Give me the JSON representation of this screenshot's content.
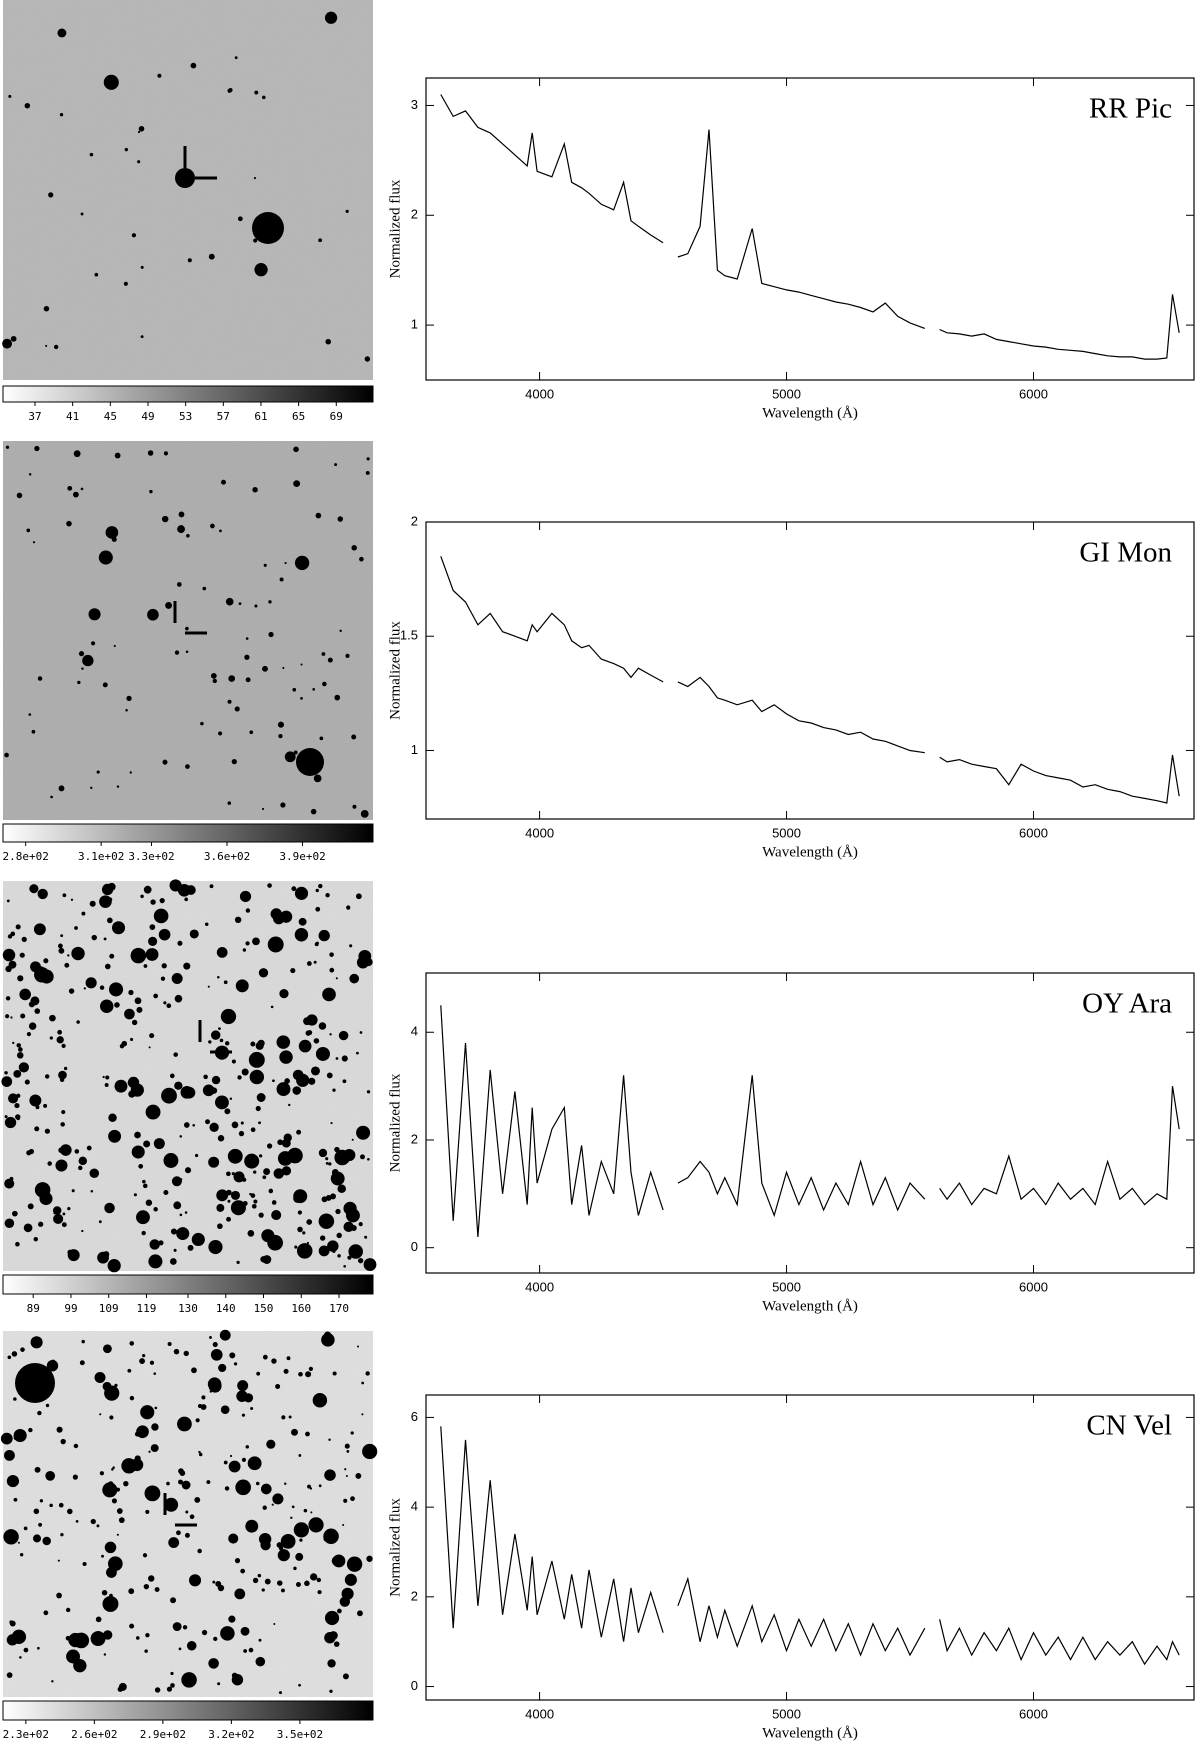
{
  "chart_data": [
    {
      "type": "colorbar",
      "xlim": [
        33.6,
        72.9
      ],
      "xticks": [
        37,
        41,
        45,
        49,
        53,
        57,
        61,
        65,
        69
      ]
    },
    {
      "type": "line",
      "title": "RR Pic",
      "x_label": "Wavelength (Å)",
      "y_label": "Normalized flux",
      "color": "#000000",
      "x": [
        3600,
        3650,
        3700,
        3750,
        3800,
        3850,
        3900,
        3950,
        3970,
        3990,
        4050,
        4100,
        4130,
        4170,
        4200,
        4250,
        4300,
        4340,
        4370,
        4400,
        4450,
        4500,
        4530,
        4560,
        4600,
        4650,
        4686,
        4720,
        4750,
        4800,
        4861,
        4900,
        4950,
        5000,
        5050,
        5100,
        5150,
        5200,
        5250,
        5300,
        5350,
        5400,
        5450,
        5500,
        5560,
        5590,
        5620,
        5650,
        5700,
        5750,
        5800,
        5850,
        5900,
        5950,
        6000,
        6050,
        6100,
        6150,
        6200,
        6250,
        6300,
        6350,
        6400,
        6450,
        6500,
        6540,
        6563,
        6590
      ],
      "values": [
        3.1,
        2.9,
        2.95,
        2.8,
        2.75,
        2.65,
        2.55,
        2.45,
        2.75,
        2.4,
        2.35,
        2.65,
        2.3,
        2.25,
        2.2,
        2.1,
        2.05,
        2.3,
        1.95,
        1.9,
        1.82,
        1.75,
        null,
        1.62,
        1.65,
        1.9,
        2.78,
        1.5,
        1.45,
        1.42,
        1.88,
        1.38,
        1.35,
        1.32,
        1.3,
        1.27,
        1.24,
        1.21,
        1.19,
        1.16,
        1.12,
        1.2,
        1.08,
        1.02,
        0.97,
        null,
        0.96,
        0.93,
        0.92,
        0.9,
        0.92,
        0.87,
        0.85,
        0.83,
        0.81,
        0.8,
        0.78,
        0.77,
        0.76,
        0.74,
        0.72,
        0.71,
        0.71,
        0.69,
        0.69,
        0.7,
        1.28,
        0.93
      ],
      "xlim": [
        3540,
        6650
      ],
      "xticks": [
        4000,
        5000,
        6000
      ],
      "ylim": [
        0.5,
        3.25
      ],
      "yticks": [
        1,
        2,
        3
      ]
    },
    {
      "type": "colorbar",
      "xlim": [
        271,
        418
      ],
      "xticks": [
        {
          "value": 280,
          "label": "2.8e+02"
        },
        {
          "value": 310,
          "label": "3.1e+02"
        },
        {
          "value": 330,
          "label": "3.3e+02"
        },
        {
          "value": 360,
          "label": "3.6e+02"
        },
        {
          "value": 390,
          "label": "3.9e+02"
        }
      ]
    },
    {
      "type": "line",
      "title": "GI Mon",
      "x_label": "Wavelength (Å)",
      "y_label": "Normalized flux",
      "color": "#000000",
      "x": [
        3600,
        3650,
        3700,
        3750,
        3800,
        3850,
        3900,
        3950,
        3970,
        3990,
        4050,
        4100,
        4130,
        4170,
        4200,
        4250,
        4300,
        4340,
        4370,
        4400,
        4450,
        4500,
        4530,
        4560,
        4600,
        4650,
        4686,
        4720,
        4750,
        4800,
        4861,
        4900,
        4950,
        5000,
        5050,
        5100,
        5150,
        5200,
        5250,
        5300,
        5350,
        5400,
        5450,
        5500,
        5560,
        5590,
        5620,
        5650,
        5700,
        5750,
        5800,
        5850,
        5900,
        5950,
        6000,
        6050,
        6100,
        6150,
        6200,
        6250,
        6300,
        6350,
        6400,
        6450,
        6500,
        6540,
        6563,
        6590
      ],
      "values": [
        1.85,
        1.7,
        1.65,
        1.55,
        1.6,
        1.52,
        1.5,
        1.48,
        1.55,
        1.52,
        1.6,
        1.55,
        1.48,
        1.45,
        1.46,
        1.4,
        1.38,
        1.36,
        1.32,
        1.36,
        1.33,
        1.3,
        null,
        1.3,
        1.28,
        1.32,
        1.28,
        1.23,
        1.22,
        1.2,
        1.22,
        1.17,
        1.2,
        1.16,
        1.13,
        1.12,
        1.1,
        1.09,
        1.07,
        1.08,
        1.05,
        1.04,
        1.02,
        1.0,
        0.99,
        null,
        0.97,
        0.95,
        0.96,
        0.94,
        0.93,
        0.92,
        0.85,
        0.94,
        0.91,
        0.89,
        0.88,
        0.87,
        0.84,
        0.85,
        0.83,
        0.82,
        0.8,
        0.79,
        0.78,
        0.77,
        0.98,
        0.8
      ],
      "xlim": [
        3540,
        6650
      ],
      "xticks": [
        4000,
        5000,
        6000
      ],
      "ylim": [
        0.7,
        2.0
      ],
      "yticks": [
        1,
        1.5,
        2
      ]
    },
    {
      "type": "colorbar",
      "xlim": [
        81,
        179
      ],
      "xticks": [
        89,
        99,
        109,
        119,
        130,
        140,
        150,
        160,
        170
      ]
    },
    {
      "type": "line",
      "title": "OY Ara",
      "x_label": "Wavelength (Å)",
      "y_label": "Normalized flux",
      "color": "#000000",
      "x": [
        3600,
        3650,
        3700,
        3750,
        3800,
        3850,
        3900,
        3950,
        3970,
        3990,
        4050,
        4100,
        4130,
        4170,
        4200,
        4250,
        4300,
        4340,
        4370,
        4400,
        4450,
        4500,
        4530,
        4560,
        4600,
        4650,
        4686,
        4720,
        4750,
        4800,
        4861,
        4900,
        4950,
        5000,
        5050,
        5100,
        5150,
        5200,
        5250,
        5300,
        5350,
        5400,
        5450,
        5500,
        5560,
        5590,
        5620,
        5650,
        5700,
        5750,
        5800,
        5850,
        5900,
        5950,
        6000,
        6050,
        6100,
        6150,
        6200,
        6250,
        6300,
        6350,
        6400,
        6450,
        6500,
        6540,
        6563,
        6590
      ],
      "values": [
        4.5,
        0.5,
        3.8,
        0.2,
        3.3,
        1.0,
        2.9,
        0.8,
        2.6,
        1.2,
        2.2,
        2.6,
        0.8,
        1.9,
        0.6,
        1.6,
        1.0,
        3.2,
        1.4,
        0.6,
        1.4,
        0.7,
        null,
        1.2,
        1.3,
        1.6,
        1.4,
        1.0,
        1.3,
        0.8,
        3.2,
        1.2,
        0.6,
        1.4,
        0.8,
        1.3,
        0.7,
        1.2,
        0.8,
        1.6,
        0.8,
        1.3,
        0.7,
        1.2,
        0.9,
        null,
        1.1,
        0.9,
        1.2,
        0.8,
        1.1,
        1.0,
        1.7,
        0.9,
        1.1,
        0.8,
        1.2,
        0.9,
        1.1,
        0.8,
        1.6,
        0.9,
        1.1,
        0.8,
        1.0,
        0.9,
        3.0,
        2.2
      ],
      "xlim": [
        3540,
        6650
      ],
      "xticks": [
        4000,
        5000,
        6000
      ],
      "ylim": [
        -0.47,
        5.1
      ],
      "yticks": [
        0,
        2,
        4
      ]
    },
    {
      "type": "colorbar",
      "xlim": [
        220,
        382
      ],
      "xticks": [
        {
          "value": 230,
          "label": "2.3e+02"
        },
        {
          "value": 260,
          "label": "2.6e+02"
        },
        {
          "value": 290,
          "label": "2.9e+02"
        },
        {
          "value": 320,
          "label": "3.2e+02"
        },
        {
          "value": 350,
          "label": "3.5e+02"
        }
      ]
    },
    {
      "type": "line",
      "title": "CN Vel",
      "x_label": "Wavelength (Å)",
      "y_label": "Normalized flux",
      "color": "#000000",
      "x": [
        3600,
        3650,
        3700,
        3750,
        3800,
        3850,
        3900,
        3950,
        3970,
        3990,
        4050,
        4100,
        4130,
        4170,
        4200,
        4250,
        4300,
        4340,
        4370,
        4400,
        4450,
        4500,
        4530,
        4560,
        4600,
        4650,
        4686,
        4720,
        4750,
        4800,
        4861,
        4900,
        4950,
        5000,
        5050,
        5100,
        5150,
        5200,
        5250,
        5300,
        5350,
        5400,
        5450,
        5500,
        5560,
        5590,
        5620,
        5650,
        5700,
        5750,
        5800,
        5850,
        5900,
        5950,
        6000,
        6050,
        6100,
        6150,
        6200,
        6250,
        6300,
        6350,
        6400,
        6450,
        6500,
        6540,
        6563,
        6590
      ],
      "values": [
        5.8,
        1.3,
        5.5,
        1.8,
        4.6,
        1.6,
        3.4,
        1.7,
        2.9,
        1.6,
        2.8,
        1.5,
        2.5,
        1.3,
        2.6,
        1.1,
        2.4,
        1.0,
        2.2,
        1.2,
        2.1,
        1.2,
        null,
        1.8,
        2.4,
        1.0,
        1.8,
        1.1,
        1.7,
        0.9,
        1.8,
        1.0,
        1.6,
        0.8,
        1.5,
        0.9,
        1.5,
        0.8,
        1.4,
        0.7,
        1.4,
        0.8,
        1.3,
        0.7,
        1.3,
        null,
        1.5,
        0.8,
        1.3,
        0.7,
        1.2,
        0.8,
        1.3,
        0.6,
        1.2,
        0.7,
        1.1,
        0.6,
        1.1,
        0.6,
        1.0,
        0.7,
        1.0,
        0.5,
        0.9,
        0.6,
        1.0,
        0.7
      ],
      "xlim": [
        3540,
        6650
      ],
      "xticks": [
        4000,
        5000,
        6000
      ],
      "ylim": [
        -0.3,
        6.5
      ],
      "yticks": [
        0,
        2,
        4,
        6
      ]
    }
  ]
}
